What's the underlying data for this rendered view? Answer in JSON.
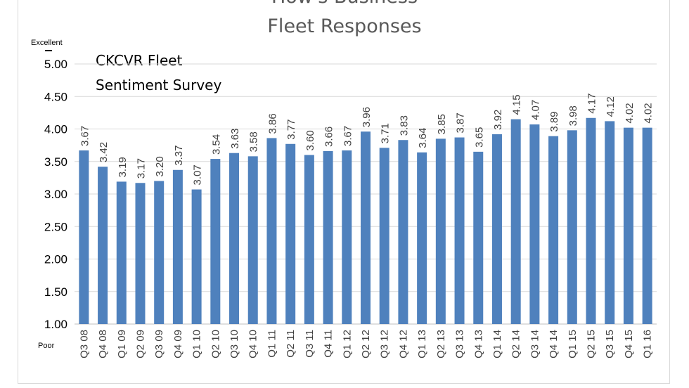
{
  "chart_data": {
    "type": "bar",
    "title_lines": [
      "How's Business",
      "Fleet Responses"
    ],
    "annotation_lines": [
      "CKCVR Fleet",
      "Sentiment Survey"
    ],
    "ytop_label": "Excellent",
    "ybottom_label": "Poor",
    "ylim": [
      1.0,
      5.0
    ],
    "yticks": [
      "1.00",
      "1.50",
      "2.00",
      "2.50",
      "3.00",
      "3.50",
      "4.00",
      "4.50",
      "5.00"
    ],
    "grid": true,
    "bar_color": "#4f81bd",
    "categories": [
      "Q3 08",
      "Q4 08",
      "Q1 09",
      "Q2 09",
      "Q3 09",
      "Q4 09",
      "Q1 10",
      "Q2 10",
      "Q3 10",
      "Q4 10",
      "Q1 11",
      "Q2 11",
      "Q3 11",
      "Q4 11",
      "Q1 12",
      "Q2 12",
      "Q3 12",
      "Q4 12",
      "Q1 13",
      "Q2 13",
      "Q3 13",
      "Q4 13",
      "Q1 14",
      "Q2 14",
      "Q3 14",
      "Q4 14",
      "Q1 15",
      "Q2 15",
      "Q3 15",
      "Q4 15",
      "Q1 16"
    ],
    "values": [
      3.67,
      3.42,
      3.19,
      3.17,
      3.2,
      3.37,
      3.07,
      3.54,
      3.63,
      3.58,
      3.86,
      3.77,
      3.6,
      3.66,
      3.67,
      3.96,
      3.71,
      3.83,
      3.64,
      3.85,
      3.87,
      3.65,
      3.92,
      4.15,
      4.07,
      3.89,
      3.98,
      4.17,
      4.12,
      4.02,
      4.02
    ],
    "value_labels": [
      "3.67",
      "3.42",
      "3.19",
      "3.17",
      "3.20",
      "3.37",
      "3.07",
      "3.54",
      "3.63",
      "3.58",
      "3.86",
      "3.77",
      "3.60",
      "3.66",
      "3.67",
      "3.96",
      "3.71",
      "3.83",
      "3.64",
      "3.85",
      "3.87",
      "3.65",
      "3.92",
      "4.15",
      "4.07",
      "3.89",
      "3.98",
      "4.17",
      "4.12",
      "4.02",
      "4.02"
    ]
  }
}
